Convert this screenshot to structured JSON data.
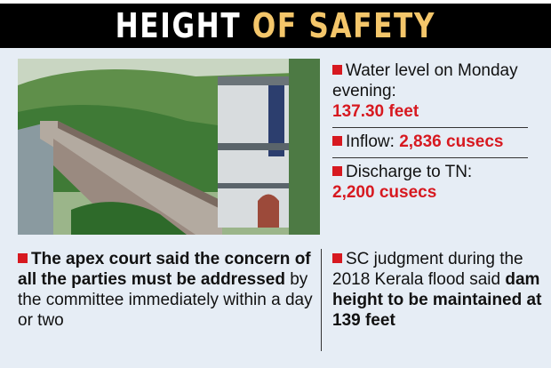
{
  "title": {
    "part1": "HEIGHT",
    "part2": "OF SAFETY"
  },
  "colors": {
    "accent_red": "#d71920",
    "title_gold": "#f4c66a",
    "panel_bg": "#e6edf5"
  },
  "photo": {
    "subject": "dam-photo"
  },
  "facts": [
    {
      "label": "Water level on Monday evening:",
      "value": "137.30 feet"
    },
    {
      "label": "Inflow:",
      "value": "2,836 cusecs"
    },
    {
      "label": "Discharge to TN:",
      "value": "2,200 cusecs"
    }
  ],
  "notes": {
    "left": {
      "bold": "The apex court said the concern of all the parties must be addressed",
      "rest": " by the committee immediately within a day or two"
    },
    "right": {
      "plain": "SC judgment during the 2018 Kerala flood said ",
      "bold": "dam height to be maintained at 139 feet"
    }
  }
}
